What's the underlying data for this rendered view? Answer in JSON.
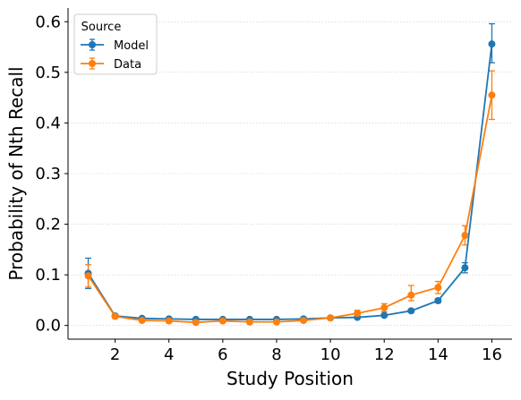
{
  "chart_data": {
    "type": "line",
    "title": "",
    "xlabel": "Study Position",
    "ylabel": "Probability of Nth Recall",
    "xlim": [
      0.25,
      16.75
    ],
    "ylim": [
      -0.027,
      0.627
    ],
    "xticks": [
      2,
      4,
      6,
      8,
      10,
      12,
      14,
      16
    ],
    "yticks": [
      0.0,
      0.1,
      0.2,
      0.3,
      0.4,
      0.5,
      0.6
    ],
    "ytick_labels": [
      "0.0",
      "0.1",
      "0.2",
      "0.3",
      "0.4",
      "0.5",
      "0.6"
    ],
    "grid": {
      "y": true,
      "x": false,
      "style": "dotted"
    },
    "legend": {
      "title": "Source",
      "placement": "upper-left"
    },
    "x": [
      1,
      2,
      3,
      4,
      5,
      6,
      7,
      8,
      9,
      10,
      11,
      12,
      13,
      14,
      15,
      16
    ],
    "series": [
      {
        "name": "Model",
        "color": "#1f77b4",
        "marker": "circle",
        "values": [
          0.103,
          0.019,
          0.014,
          0.013,
          0.012,
          0.012,
          0.012,
          0.012,
          0.013,
          0.015,
          0.016,
          0.02,
          0.029,
          0.049,
          0.114,
          0.556
        ],
        "err_low": [
          0.03,
          0.002,
          0.002,
          0.002,
          0.001,
          0.001,
          0.001,
          0.001,
          0.002,
          0.002,
          0.002,
          0.002,
          0.003,
          0.004,
          0.01,
          0.037
        ],
        "err_high": [
          0.03,
          0.002,
          0.002,
          0.002,
          0.001,
          0.001,
          0.001,
          0.001,
          0.002,
          0.002,
          0.002,
          0.002,
          0.003,
          0.004,
          0.01,
          0.04
        ]
      },
      {
        "name": "Data",
        "color": "#ff7f0e",
        "marker": "circle",
        "values": [
          0.098,
          0.018,
          0.01,
          0.009,
          0.006,
          0.009,
          0.007,
          0.007,
          0.01,
          0.015,
          0.024,
          0.035,
          0.06,
          0.075,
          0.178,
          0.455
        ],
        "err_low": [
          0.022,
          0.004,
          0.003,
          0.003,
          0.002,
          0.003,
          0.002,
          0.002,
          0.003,
          0.003,
          0.006,
          0.008,
          0.011,
          0.012,
          0.019,
          0.048
        ],
        "err_high": [
          0.022,
          0.004,
          0.003,
          0.003,
          0.002,
          0.003,
          0.002,
          0.002,
          0.003,
          0.003,
          0.006,
          0.008,
          0.019,
          0.012,
          0.019,
          0.048
        ]
      }
    ]
  }
}
